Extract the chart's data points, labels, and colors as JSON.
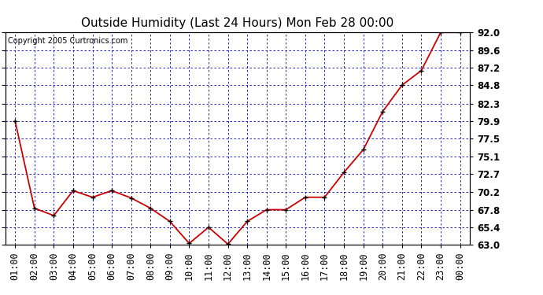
{
  "title": "Outside Humidity (Last 24 Hours) Mon Feb 28 00:00",
  "copyright": "Copyright 2005 Curtronics.com",
  "x_labels": [
    "01:00",
    "02:00",
    "03:00",
    "04:00",
    "05:00",
    "06:00",
    "07:00",
    "08:00",
    "09:00",
    "10:00",
    "11:00",
    "12:00",
    "13:00",
    "14:00",
    "15:00",
    "16:00",
    "17:00",
    "18:00",
    "19:00",
    "20:00",
    "21:00",
    "22:00",
    "23:00",
    "00:00"
  ],
  "x_values": [
    1,
    2,
    3,
    4,
    5,
    6,
    7,
    8,
    9,
    10,
    11,
    12,
    13,
    14,
    15,
    16,
    17,
    18,
    19,
    20,
    21,
    22,
    23,
    24
  ],
  "y_values": [
    79.9,
    68.0,
    67.0,
    70.4,
    69.5,
    70.4,
    69.4,
    68.0,
    66.2,
    63.2,
    65.4,
    63.1,
    66.2,
    67.8,
    67.8,
    69.5,
    69.5,
    72.9,
    76.0,
    81.2,
    84.8,
    86.8,
    92.0,
    92.0
  ],
  "ylim_min": 63.0,
  "ylim_max": 92.0,
  "yticks": [
    63.0,
    65.4,
    67.8,
    70.2,
    72.7,
    75.1,
    77.5,
    79.9,
    82.3,
    84.8,
    87.2,
    89.6,
    92.0
  ],
  "line_color": "#cc0000",
  "marker_color": "#000000",
  "plot_bg_color": "#ffffff",
  "grid_color": "#0000bb",
  "title_fontsize": 11,
  "copyright_fontsize": 7,
  "tick_fontsize": 8.5,
  "ytick_fontweight": "bold"
}
